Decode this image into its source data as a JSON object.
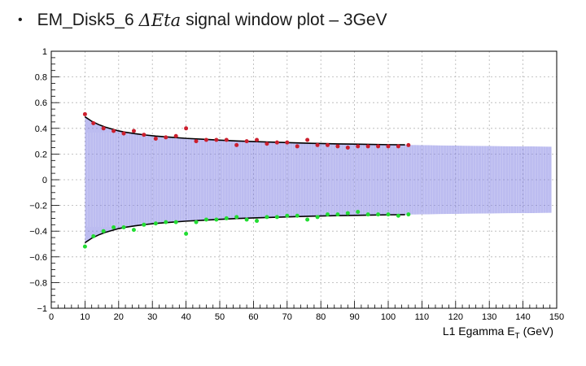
{
  "slide": {
    "bullet": "•",
    "title_prefix": "EM_Disk5_6",
    "title_math": "ΔEta",
    "title_suffix": "signal window plot – 3GeV"
  },
  "chart_data": {
    "type": "scatter",
    "xlabel": "L1 Egamma E",
    "xlabel_sub": "T",
    "xlabel_unit": "(GeV)",
    "ylabel": "",
    "xlim": [
      0,
      150
    ],
    "ylim": [
      -1,
      1
    ],
    "x_ticks": [
      0,
      10,
      20,
      30,
      40,
      50,
      60,
      70,
      80,
      90,
      100,
      110,
      120,
      130,
      140,
      150
    ],
    "y_ticks": [
      -1,
      -0.8,
      -0.6,
      -0.4,
      -0.2,
      0,
      0.2,
      0.4,
      0.6,
      0.8,
      1
    ],
    "x_tick_labels": [
      "0",
      "10",
      "20",
      "30",
      "40",
      "50",
      "60",
      "70",
      "80",
      "90",
      "100",
      "110",
      "120",
      "130",
      "140",
      "150"
    ],
    "y_tick_labels": [
      "−1",
      "−0.8",
      "−0.6",
      "−0.4",
      "−0.2",
      "0",
      "0.2",
      "0.4",
      "0.6",
      "0.8",
      "1"
    ],
    "grid": true,
    "series": [
      {
        "color": "#cc1f2e",
        "x": [
          10,
          12.5,
          15.5,
          18.5,
          21.5,
          24.5,
          27.5,
          31,
          34,
          37,
          40,
          43,
          46,
          49,
          52,
          55,
          58,
          61,
          64,
          67,
          70,
          73,
          76,
          79,
          82,
          85,
          88,
          91,
          94,
          97,
          100,
          103,
          106
        ],
        "y": [
          0.51,
          0.44,
          0.4,
          0.38,
          0.36,
          0.38,
          0.35,
          0.32,
          0.33,
          0.34,
          0.4,
          0.3,
          0.31,
          0.31,
          0.31,
          0.27,
          0.3,
          0.31,
          0.28,
          0.29,
          0.29,
          0.26,
          0.31,
          0.27,
          0.27,
          0.26,
          0.25,
          0.26,
          0.26,
          0.26,
          0.26,
          0.26,
          0.27
        ]
      },
      {
        "color": "#22dd33",
        "x": [
          10,
          12.5,
          15.5,
          18.5,
          21.5,
          24.5,
          27.5,
          31,
          34,
          37,
          40,
          43,
          46,
          49,
          52,
          55,
          58,
          61,
          64,
          67,
          70,
          73,
          76,
          79,
          82,
          85,
          88,
          91,
          94,
          97,
          100,
          103,
          106
        ],
        "y": [
          -0.52,
          -0.44,
          -0.4,
          -0.37,
          -0.37,
          -0.39,
          -0.35,
          -0.34,
          -0.33,
          -0.33,
          -0.42,
          -0.33,
          -0.31,
          -0.31,
          -0.3,
          -0.29,
          -0.31,
          -0.32,
          -0.29,
          -0.29,
          -0.28,
          -0.28,
          -0.31,
          -0.29,
          -0.27,
          -0.27,
          -0.26,
          -0.25,
          -0.27,
          -0.27,
          -0.27,
          -0.28,
          -0.27
        ]
      }
    ],
    "fit_curve": {
      "color": "#000000",
      "x": [
        10,
        12,
        14,
        16,
        18,
        20,
        22,
        25,
        28,
        31,
        35,
        40,
        45,
        50,
        55,
        60,
        65,
        70,
        75,
        80,
        85,
        90,
        95,
        100,
        105
      ],
      "y": [
        0.49,
        0.455,
        0.43,
        0.41,
        0.395,
        0.38,
        0.37,
        0.358,
        0.348,
        0.34,
        0.332,
        0.322,
        0.315,
        0.308,
        0.302,
        0.297,
        0.293,
        0.289,
        0.285,
        0.282,
        0.279,
        0.277,
        0.275,
        0.273,
        0.272
      ]
    },
    "band": {
      "color": "#6b6bdd",
      "x_end": 148.5,
      "edge_x": [
        10,
        12,
        14,
        16,
        18,
        20,
        22,
        25,
        28,
        31,
        35,
        40,
        45,
        50,
        55,
        60,
        65,
        70,
        75,
        80,
        85,
        90,
        95,
        100,
        105,
        110,
        120,
        130,
        140,
        148.5
      ],
      "edge_y": [
        0.49,
        0.455,
        0.43,
        0.41,
        0.395,
        0.38,
        0.37,
        0.358,
        0.348,
        0.34,
        0.332,
        0.322,
        0.315,
        0.308,
        0.302,
        0.297,
        0.293,
        0.289,
        0.285,
        0.282,
        0.279,
        0.277,
        0.275,
        0.273,
        0.272,
        0.27,
        0.266,
        0.263,
        0.26,
        0.258
      ]
    }
  }
}
